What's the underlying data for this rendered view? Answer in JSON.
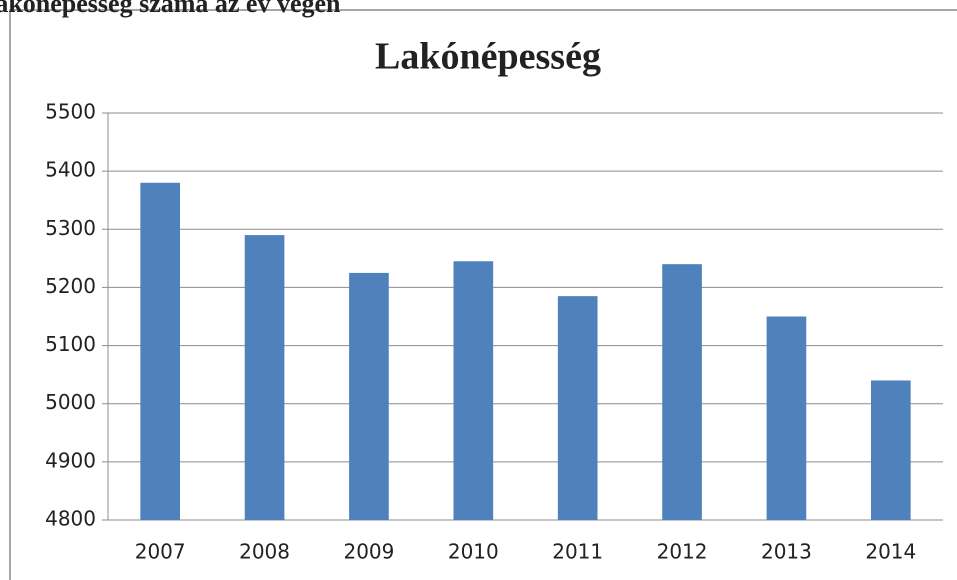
{
  "heading": "Lakónépesség száma az év végén",
  "chart_data": {
    "type": "bar",
    "title": "Lakónépesség",
    "categories": [
      "2007",
      "2008",
      "2009",
      "2010",
      "2011",
      "2012",
      "2013",
      "2014"
    ],
    "values": [
      5380,
      5290,
      5225,
      5245,
      5185,
      5240,
      5150,
      5040
    ],
    "color": "#4f81bd",
    "ylim": [
      4800,
      5500
    ],
    "yticks": [
      4800,
      4900,
      5000,
      5100,
      5200,
      5300,
      5400,
      5500
    ],
    "grid": true
  }
}
